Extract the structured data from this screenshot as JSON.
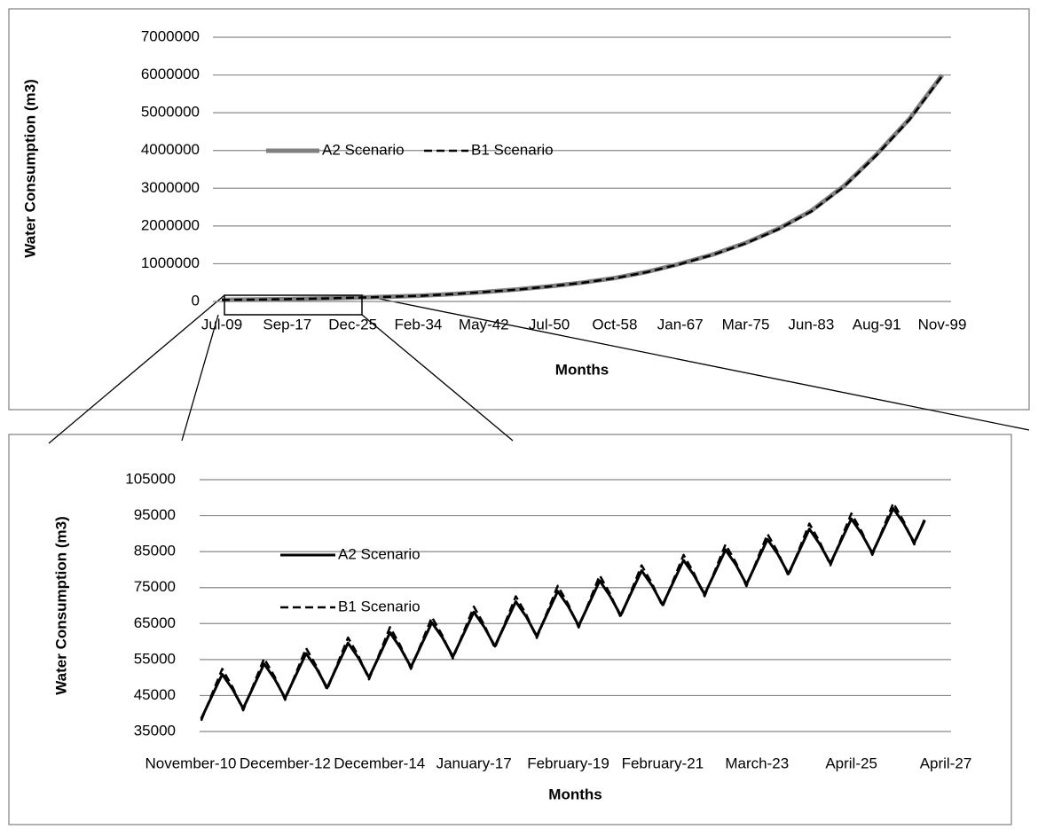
{
  "chart_data": [
    {
      "type": "line",
      "y_label": "Water Consumption (m3)",
      "x_label": "Months",
      "grid": true,
      "categories": [
        "Jul-09",
        null,
        "Sep-17",
        null,
        "Dec-25",
        null,
        "Feb-34",
        null,
        "May-42",
        null,
        "Jul-50",
        null,
        "Oct-58",
        null,
        "Jan-67",
        null,
        "Mar-75",
        null,
        "Jun-83",
        null,
        "Aug-91",
        null,
        "Nov-99"
      ],
      "ylim": [
        0,
        7000000
      ],
      "yticks": [
        0,
        1000000,
        2000000,
        3000000,
        4000000,
        5000000,
        6000000,
        7000000
      ],
      "series": [
        {
          "name": "A2 Scenario",
          "color": "#808080",
          "dashed": false,
          "values": [
            42000,
            51000,
            62000,
            79000,
            100000,
            122000,
            150000,
            194000,
            250000,
            316000,
            400000,
            498000,
            620000,
            787000,
            1000000,
            1245000,
            1550000,
            1929000,
            2400000,
            3059000,
            3900000,
            4837000,
            6000000
          ]
        },
        {
          "name": "B1 Scenario",
          "color": "#000000",
          "dashed": true,
          "values": [
            41000,
            50000,
            61000,
            78000,
            99000,
            121000,
            149000,
            192000,
            248000,
            313000,
            397000,
            494000,
            615000,
            781000,
            992000,
            1235000,
            1538000,
            1915000,
            2385000,
            3040000,
            3880000,
            4815000,
            5975000
          ]
        }
      ]
    },
    {
      "type": "line",
      "y_label": "Water Consumption (m3)",
      "x_label": "Months",
      "grid": true,
      "categories": [
        "November-10",
        null,
        null,
        null,
        null,
        null,
        null,
        null,
        null,
        "December-12",
        null,
        null,
        null,
        null,
        null,
        null,
        null,
        null,
        "December-14",
        null,
        null,
        null,
        null,
        null,
        null,
        null,
        null,
        "January-17",
        null,
        null,
        null,
        null,
        null,
        null,
        null,
        null,
        "February-19",
        null,
        null,
        null,
        null,
        null,
        null,
        null,
        null,
        "February-21",
        null,
        null,
        null,
        null,
        null,
        null,
        null,
        null,
        "March-23",
        null,
        null,
        null,
        null,
        null,
        null,
        null,
        null,
        "April-25",
        null,
        null,
        null,
        null,
        null,
        null,
        null,
        null,
        "April-27"
      ],
      "ylim": [
        35000,
        105000
      ],
      "yticks": [
        35000,
        45000,
        55000,
        65000,
        75000,
        85000,
        95000,
        105000
      ],
      "series": [
        {
          "name": "A2 Scenario",
          "color": "#000000",
          "dashed": false,
          "values": [
            null,
            38500,
            44700,
            50900,
            46700,
            41400,
            47600,
            53800,
            49600,
            44300,
            50500,
            56700,
            52500,
            47100,
            53400,
            59600,
            55400,
            50000,
            56200,
            62500,
            58200,
            52900,
            59100,
            65300,
            61100,
            55800,
            62000,
            68200,
            64000,
            58700,
            64900,
            71100,
            66900,
            61500,
            67800,
            74000,
            69800,
            64400,
            70600,
            76900,
            72600,
            67300,
            73500,
            79700,
            75500,
            70200,
            76400,
            82600,
            78400,
            73100,
            79300,
            85500,
            81300,
            75900,
            82200,
            88400,
            84200,
            78800,
            85000,
            91300,
            87000,
            81700,
            87900,
            94100,
            89900,
            84600,
            90800,
            97000,
            92800,
            87500,
            93700,
            null,
            null
          ]
        },
        {
          "name": "B1 Scenario",
          "color": "#000000",
          "dashed": true,
          "values": [
            null,
            38000,
            45200,
            52400,
            47300,
            40900,
            48100,
            55300,
            50200,
            43800,
            51000,
            58200,
            53100,
            46600,
            53900,
            61100,
            56000,
            49500,
            56700,
            64000,
            58800,
            52400,
            59600,
            66800,
            61700,
            55300,
            62500,
            69700,
            64600,
            58200,
            65400,
            72600,
            67500,
            61000,
            68300,
            75500,
            70400,
            63900,
            71100,
            78400,
            73200,
            66800,
            74000,
            81200,
            76100,
            69700,
            76900,
            84100,
            79000,
            72600,
            79800,
            87000,
            81900,
            75400,
            82700,
            89900,
            84800,
            78300,
            85500,
            92800,
            87600,
            81200,
            88400,
            95600,
            90500,
            84100,
            91300,
            98500,
            93400,
            87000,
            94200,
            null,
            null
          ]
        }
      ]
    }
  ]
}
